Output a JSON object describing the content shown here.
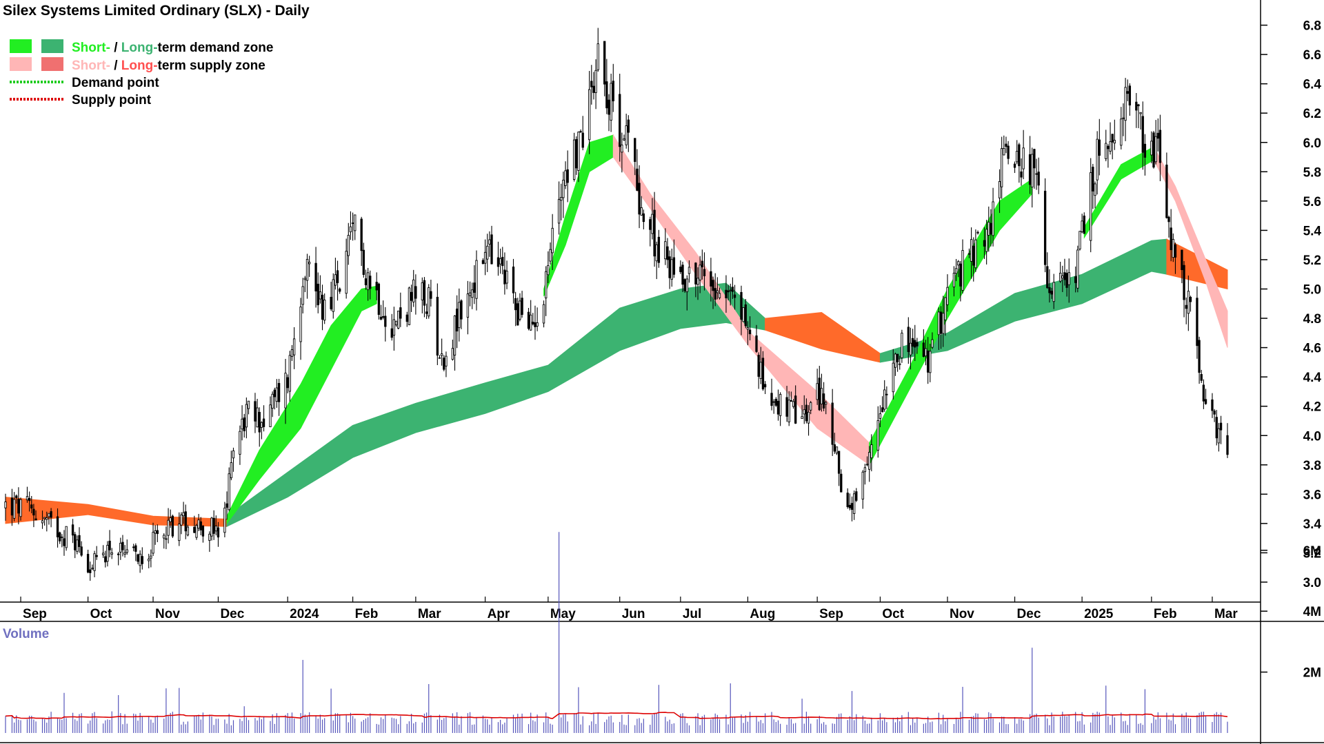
{
  "chart_data": {
    "type": "candlestick",
    "title": "Silex Systems Limited Ordinary (SLX) - Daily",
    "legend": {
      "demand_zone": {
        "short": "Short-",
        "sep": " / ",
        "long": "Long-",
        "rest": "term demand zone"
      },
      "supply_zone": {
        "short": "Short-",
        "sep": " / ",
        "long": "Long-",
        "rest": "term supply zone"
      },
      "demand_point": "Demand point",
      "supply_point": "Supply point"
    },
    "colors": {
      "short_demand": "#22ee22",
      "long_demand": "#3cb371",
      "short_supply": "#ffb6b6",
      "long_supply": "#ff6a2a",
      "candle": "#000000",
      "volume": "#5555bb",
      "volume_avg": "#dd0000",
      "demand_point": "#22cc22",
      "supply_point": "#dd0000"
    },
    "price_axis": {
      "ticks": [
        "6.8",
        "6.6",
        "6.4",
        "6.2",
        "6.0",
        "5.8",
        "5.6",
        "5.4",
        "5.2",
        "5.0",
        "4.8",
        "4.6",
        "4.4",
        "4.2",
        "4.0",
        "3.8",
        "3.6",
        "3.4",
        "3.2",
        "3.0"
      ],
      "range": [
        2.88,
        6.95
      ]
    },
    "x_labels": [
      "Sep",
      "Oct",
      "Nov",
      "Dec",
      "2024",
      "Feb",
      "Mar",
      "Apr",
      "May",
      "Jun",
      "Jul",
      "Aug",
      "Sep",
      "Oct",
      "Nov",
      "Dec",
      "2025",
      "Feb",
      "Mar"
    ],
    "volume_label": "Volume",
    "volume_axis": {
      "ticks": [
        "6M",
        "4M",
        "2M"
      ],
      "range": [
        0,
        6.9
      ]
    },
    "close_anchors": [
      [
        "2023-08-25",
        3.52
      ],
      [
        "2023-09-05",
        3.5
      ],
      [
        "2023-09-14",
        3.4
      ],
      [
        "2023-09-26",
        3.28
      ],
      [
        "2023-10-04",
        3.1
      ],
      [
        "2023-10-12",
        3.25
      ],
      [
        "2023-10-20",
        3.15
      ],
      [
        "2023-10-30",
        3.22
      ],
      [
        "2023-11-07",
        3.38
      ],
      [
        "2023-11-16",
        3.42
      ],
      [
        "2023-11-27",
        3.38
      ],
      [
        "2023-12-01",
        3.3
      ],
      [
        "2023-12-05",
        3.5
      ],
      [
        "2023-12-07",
        3.9
      ],
      [
        "2023-12-14",
        4.15
      ],
      [
        "2023-12-22",
        4.1
      ],
      [
        "2024-01-02",
        4.4
      ],
      [
        "2024-01-10",
        5.2
      ],
      [
        "2024-01-18",
        4.9
      ],
      [
        "2024-01-26",
        5.05
      ],
      [
        "2024-02-02",
        5.4
      ],
      [
        "2024-02-09",
        5.05
      ],
      [
        "2024-02-20",
        4.75
      ],
      [
        "2024-02-29",
        4.95
      ],
      [
        "2024-03-08",
        4.9
      ],
      [
        "2024-03-13",
        4.5
      ],
      [
        "2024-03-22",
        4.85
      ],
      [
        "2024-04-03",
        5.25
      ],
      [
        "2024-04-12",
        5.05
      ],
      [
        "2024-04-22",
        4.7
      ],
      [
        "2024-04-29",
        5.0
      ],
      [
        "2024-05-08",
        5.8
      ],
      [
        "2024-05-16",
        6.0
      ],
      [
        "2024-05-24",
        6.65
      ],
      [
        "2024-05-31",
        6.2
      ],
      [
        "2024-06-07",
        6.0
      ],
      [
        "2024-06-14",
        5.5
      ],
      [
        "2024-06-24",
        5.2
      ],
      [
        "2024-07-03",
        5.1
      ],
      [
        "2024-07-12",
        5.1
      ],
      [
        "2024-07-22",
        5.0
      ],
      [
        "2024-07-31",
        4.8
      ],
      [
        "2024-08-07",
        4.4
      ],
      [
        "2024-08-16",
        4.2
      ],
      [
        "2024-08-26",
        4.1
      ],
      [
        "2024-09-04",
        4.3
      ],
      [
        "2024-09-10",
        3.9
      ],
      [
        "2024-09-17",
        3.45
      ],
      [
        "2024-09-24",
        3.7
      ],
      [
        "2024-10-01",
        4.2
      ],
      [
        "2024-10-08",
        4.6
      ],
      [
        "2024-10-16",
        4.6
      ],
      [
        "2024-10-24",
        4.5
      ],
      [
        "2024-11-01",
        5.0
      ],
      [
        "2024-11-11",
        5.2
      ],
      [
        "2024-11-20",
        5.4
      ],
      [
        "2024-11-28",
        6.0
      ],
      [
        "2024-12-05",
        5.9
      ],
      [
        "2024-12-11",
        5.8
      ],
      [
        "2024-12-18",
        5.0
      ],
      [
        "2024-12-27",
        5.0
      ],
      [
        "2025-01-03",
        5.4
      ],
      [
        "2025-01-10",
        6.0
      ],
      [
        "2025-01-17",
        5.9
      ],
      [
        "2025-01-24",
        6.4
      ],
      [
        "2025-01-31",
        6.0
      ],
      [
        "2025-02-07",
        5.9
      ],
      [
        "2025-02-14",
        5.1
      ],
      [
        "2025-02-21",
        4.9
      ],
      [
        "2025-02-26",
        4.3
      ],
      [
        "2025-03-04",
        4.05
      ],
      [
        "2025-03-10",
        3.85
      ]
    ],
    "zones": {
      "long_demand": [
        [
          "2023-12-05",
          3.38,
          3.45
        ],
        [
          "2024-01-02",
          3.58,
          3.75
        ],
        [
          "2024-02-01",
          3.85,
          4.07
        ],
        [
          "2024-03-01",
          4.02,
          4.22
        ],
        [
          "2024-04-02",
          4.15,
          4.36
        ],
        [
          "2024-05-01",
          4.3,
          4.48
        ],
        [
          "2024-06-03",
          4.58,
          4.87
        ],
        [
          "2024-07-01",
          4.73,
          5.0
        ],
        [
          "2024-07-22",
          4.77,
          5.04
        ],
        [
          "2024-08-09",
          4.72,
          4.8
        ]
      ],
      "long_supply": [
        [
          "2023-08-25",
          3.4,
          3.58
        ],
        [
          "2023-10-02",
          3.46,
          3.53
        ],
        [
          "2023-11-01",
          3.39,
          3.45
        ],
        [
          "2023-12-05",
          3.38,
          3.43
        ]
      ],
      "long_supply_2": [
        [
          "2024-08-09",
          4.72,
          4.8
        ],
        [
          "2024-09-04",
          4.59,
          4.84
        ],
        [
          "2024-10-01",
          4.5,
          4.56
        ]
      ],
      "long_demand_2": [
        [
          "2024-10-01",
          4.5,
          4.56
        ],
        [
          "2024-11-01",
          4.58,
          4.7
        ],
        [
          "2024-12-02",
          4.78,
          4.97
        ],
        [
          "2025-01-02",
          4.9,
          5.1
        ],
        [
          "2025-02-03",
          5.12,
          5.33
        ],
        [
          "2025-02-10",
          5.1,
          5.34
        ]
      ],
      "long_supply_3": [
        [
          "2025-02-10",
          5.1,
          5.34
        ],
        [
          "2025-03-10",
          5.0,
          5.13
        ]
      ],
      "short_demand": [
        [
          "2023-12-05",
          3.4,
          3.45
        ],
        [
          "2023-12-20",
          3.7,
          3.9
        ],
        [
          "2024-01-08",
          4.05,
          4.35
        ],
        [
          "2024-01-22",
          4.45,
          4.75
        ],
        [
          "2024-02-05",
          4.85,
          5.0
        ],
        [
          "2024-02-12",
          4.9,
          5.02
        ]
      ],
      "short_demand_2": [
        [
          "2024-04-29",
          4.95,
          5.0
        ],
        [
          "2024-05-09",
          5.3,
          5.5
        ],
        [
          "2024-05-20",
          5.8,
          6.0
        ],
        [
          "2024-05-31",
          5.9,
          6.05
        ]
      ],
      "short_supply": [
        [
          "2024-05-31",
          5.9,
          6.05
        ],
        [
          "2024-06-17",
          5.55,
          5.65
        ],
        [
          "2024-07-08",
          5.1,
          5.25
        ],
        [
          "2024-08-02",
          4.6,
          4.7
        ],
        [
          "2024-09-02",
          4.05,
          4.3
        ],
        [
          "2024-09-26",
          3.8,
          3.95
        ]
      ],
      "short_demand_3": [
        [
          "2024-09-26",
          3.8,
          3.95
        ],
        [
          "2024-10-14",
          4.3,
          4.45
        ],
        [
          "2024-11-01",
          4.8,
          5.0
        ],
        [
          "2024-11-25",
          5.4,
          5.6
        ],
        [
          "2024-12-10",
          5.65,
          5.75
        ]
      ],
      "short_demand_4": [
        [
          "2025-01-03",
          5.35,
          5.42
        ],
        [
          "2025-01-20",
          5.75,
          5.85
        ],
        [
          "2025-02-04",
          5.88,
          5.97
        ]
      ],
      "short_supply_2": [
        [
          "2025-02-04",
          5.88,
          5.97
        ],
        [
          "2025-02-14",
          5.6,
          5.7
        ],
        [
          "2025-02-28",
          5.05,
          5.2
        ],
        [
          "2025-03-10",
          4.6,
          4.85
        ]
      ]
    }
  }
}
